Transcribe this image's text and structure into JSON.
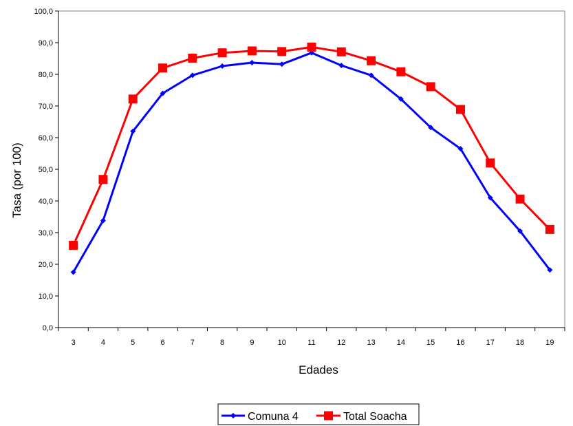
{
  "chart_data": {
    "type": "line",
    "xlabel": "Edades",
    "ylabel": "Tasa (por 100)",
    "ylim": [
      0,
      100
    ],
    "y_ticks": [
      "0,0",
      "10,0",
      "20,0",
      "30,0",
      "40,0",
      "50,0",
      "60,0",
      "70,0",
      "80,0",
      "90,0",
      "100,0"
    ],
    "categories": [
      "3",
      "4",
      "5",
      "6",
      "7",
      "8",
      "9",
      "10",
      "11",
      "12",
      "13",
      "14",
      "15",
      "16",
      "17",
      "18",
      "19"
    ],
    "grid": false,
    "legend_position": "bottom",
    "series": [
      {
        "name": "Comuna 4",
        "color": "#0000ff",
        "marker": "diamond",
        "values": [
          17.5,
          33.8,
          62.0,
          74.0,
          79.7,
          82.6,
          83.7,
          83.2,
          86.8,
          82.8,
          79.7,
          72.2,
          63.2,
          56.5,
          41.0,
          30.5,
          18.2
        ]
      },
      {
        "name": "Total Soacha",
        "color": "#ff0000",
        "marker": "square",
        "values": [
          26.0,
          46.8,
          72.2,
          82.0,
          85.1,
          86.8,
          87.4,
          87.2,
          88.6,
          87.1,
          84.3,
          80.8,
          76.1,
          68.9,
          52.0,
          40.6,
          31.0
        ]
      }
    ]
  }
}
